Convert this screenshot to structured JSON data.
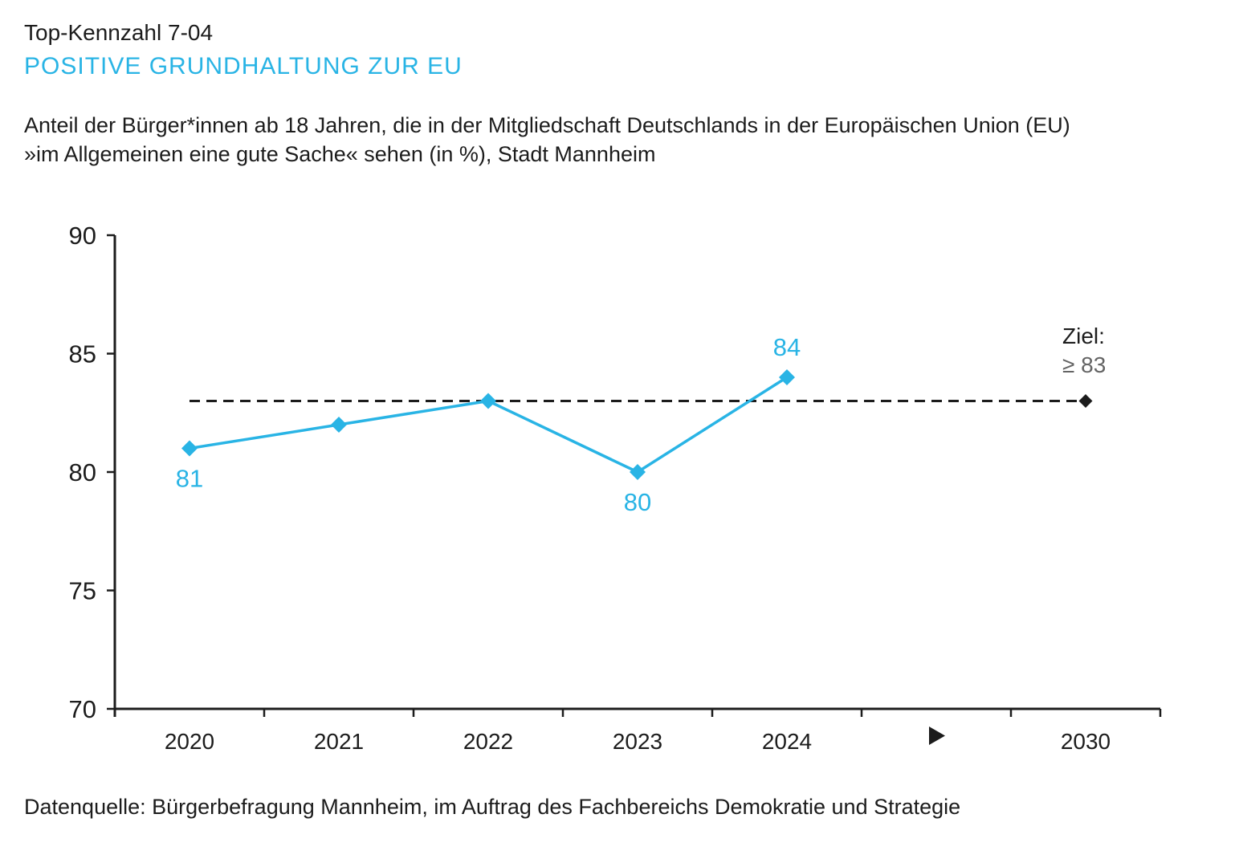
{
  "header": {
    "kennzahl_label": "Top-Kennzahl 7-04",
    "title": "POSITIVE GRUNDHALTUNG ZUR EU",
    "subtitle_line1": "Anteil der Bürger*innen ab 18 Jahren, die in der Mitgliedschaft Deutschlands in der Europäischen Union (EU)",
    "subtitle_line2": "»im Allgemeinen eine gute Sache« sehen (in %), Stadt Mannheim"
  },
  "footer": {
    "source": "Datenquelle: Bürgerbefragung Mannheim, im Auftrag des Fachbereichs Demokratie und Strategie"
  },
  "colors": {
    "accent_cyan": "#29b4e5",
    "axis_black": "#1c1c1c",
    "target_value_gray": "#646464"
  },
  "chart_data": {
    "type": "line",
    "title": "POSITIVE GRUNDHALTUNG ZUR EU",
    "unit": "%",
    "categories": [
      "2020",
      "2021",
      "2022",
      "2023",
      "2024"
    ],
    "values": [
      81,
      82,
      83,
      80,
      84
    ],
    "point_labels": [
      "81",
      "",
      "",
      "80",
      "84"
    ],
    "point_label_positions": [
      "below",
      "",
      "",
      "below",
      "above"
    ],
    "series_color": "#29b4e5",
    "marker": "diamond",
    "ylim": [
      70,
      90
    ],
    "yticks": [
      70,
      75,
      80,
      85,
      90
    ],
    "grid": false,
    "legend_position": "none",
    "x_axis_gap_marker": "play-arrow",
    "target": {
      "label_title": "Ziel:",
      "label_value": "≥ 83",
      "value": 83,
      "category": "2030",
      "line_style": "dashed",
      "color": "#1c1c1c"
    }
  }
}
